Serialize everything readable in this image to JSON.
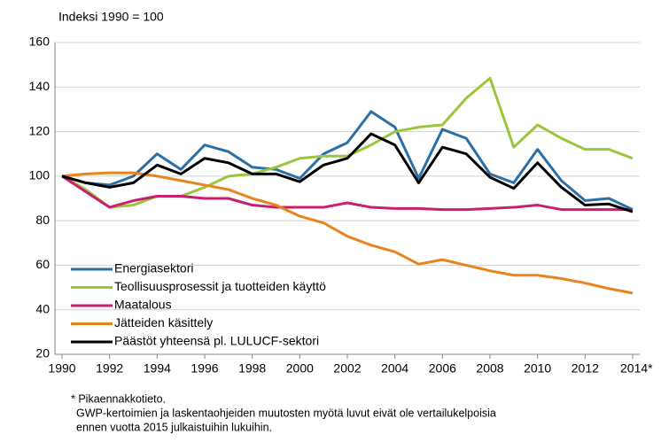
{
  "chart_data": {
    "type": "line",
    "title": "Indeksi 1990 = 100",
    "x": [
      1990,
      1991,
      1992,
      1993,
      1994,
      1995,
      1996,
      1997,
      1998,
      1999,
      2000,
      2001,
      2002,
      2003,
      2004,
      2005,
      2006,
      2007,
      2008,
      2009,
      2010,
      2011,
      2012,
      2013,
      2014
    ],
    "series": [
      {
        "name": "Energiasektori",
        "color": "#2a6fa5",
        "values": [
          100,
          97,
          96,
          100,
          110,
          103,
          114,
          111,
          104,
          103,
          99,
          110,
          115,
          129,
          122,
          99,
          121,
          117,
          101,
          97,
          112,
          98,
          89,
          90,
          85
        ]
      },
      {
        "name": "Teollisuusprosessit ja tuotteiden käyttö",
        "color": "#9bc53d",
        "values": [
          100,
          94,
          86,
          87,
          91,
          91,
          95,
          100,
          101,
          104,
          108,
          109,
          109,
          114,
          120,
          122,
          123,
          135,
          144,
          113,
          123,
          117,
          112,
          112,
          108
        ]
      },
      {
        "name": "Maatalous",
        "color": "#c8206e",
        "values": [
          100,
          93,
          86,
          89,
          91,
          91,
          90,
          90,
          87,
          86,
          86,
          86,
          88,
          86,
          85.5,
          85.5,
          85,
          85,
          85.5,
          86,
          87,
          85,
          85,
          85,
          85
        ]
      },
      {
        "name": "Jätteiden käsittely",
        "color": "#e8841e",
        "values": [
          100,
          101,
          101.5,
          101.5,
          100,
          98,
          96,
          94,
          90,
          87,
          82,
          79,
          73,
          69,
          66,
          60.5,
          62.5,
          60,
          57.5,
          55.5,
          55.5,
          54,
          52,
          49.5,
          47.5
        ]
      },
      {
        "name": "Päästöt yhteensä pl. LULUCF-sektori",
        "color": "#000000",
        "values": [
          100,
          97,
          95,
          97,
          105,
          101,
          108,
          106,
          101,
          101,
          97.5,
          105,
          108,
          119,
          114,
          97,
          113,
          110,
          99.5,
          94.5,
          106,
          95,
          87,
          87.5,
          84
        ]
      }
    ],
    "xlim": [
      1990,
      2014
    ],
    "xticks": [
      1990,
      1992,
      1994,
      1996,
      1998,
      2000,
      2002,
      2004,
      2006,
      2008,
      2010,
      2012,
      {
        "value": 2014,
        "label": "2014*"
      }
    ],
    "ylim": [
      20,
      160
    ],
    "yticks": [
      20,
      40,
      60,
      80,
      100,
      120,
      140,
      160
    ],
    "grid": true,
    "legend": "lower-left",
    "notes": [
      "* Pikaennakkotieto.",
      "GWP-kertoimien ja laskentaohjeiden muutosten myötä luvut eivät ole vertailukelpoisia",
      "ennen vuotta 2015 julkaistuihin lukuihin."
    ]
  }
}
